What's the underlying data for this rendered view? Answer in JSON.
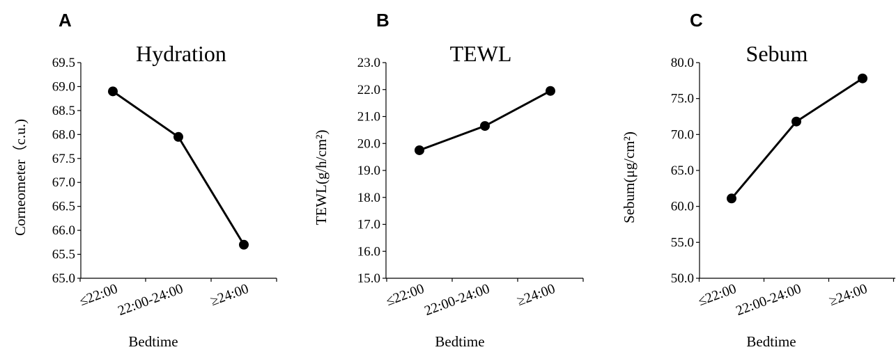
{
  "chart_data": [
    {
      "type": "line",
      "panel": "A",
      "title": "Hydration",
      "xlabel": "Bedtime",
      "ylabel": "Corneometer（c.u.)",
      "categories": [
        "≤22:00",
        "22:00-24:00",
        "≥24:00"
      ],
      "values": [
        68.9,
        67.95,
        65.7
      ],
      "ylim": [
        65.0,
        69.5
      ],
      "yticks": [
        "65.0",
        "65.5",
        "66.0",
        "66.5",
        "67.0",
        "67.5",
        "68.0",
        "68.5",
        "69.0",
        "69.5"
      ],
      "grid": false,
      "color": "#000000"
    },
    {
      "type": "line",
      "panel": "B",
      "title": "TEWL",
      "xlabel": "Bedtime",
      "ylabel": "TEWL(g/h/cm²)",
      "categories": [
        "≤22:00",
        "22:00-24:00",
        "≥24:00"
      ],
      "values": [
        19.75,
        20.65,
        21.95
      ],
      "ylim": [
        15.0,
        23.0
      ],
      "yticks": [
        "15.0",
        "16.0",
        "17.0",
        "18.0",
        "19.0",
        "20.0",
        "21.0",
        "22.0",
        "23.0"
      ],
      "grid": false,
      "color": "#000000"
    },
    {
      "type": "line",
      "panel": "C",
      "title": "Sebum",
      "xlabel": "Bedtime",
      "ylabel": "Sebum(μg/cm²)",
      "categories": [
        "≤22:00",
        "22:00-24:00",
        "≥24:00"
      ],
      "values": [
        61.1,
        71.8,
        77.8
      ],
      "ylim": [
        50.0,
        80.0
      ],
      "yticks": [
        "50.0",
        "55.0",
        "60.0",
        "65.0",
        "70.0",
        "75.0",
        "80.0"
      ],
      "grid": false,
      "color": "#000000"
    }
  ]
}
